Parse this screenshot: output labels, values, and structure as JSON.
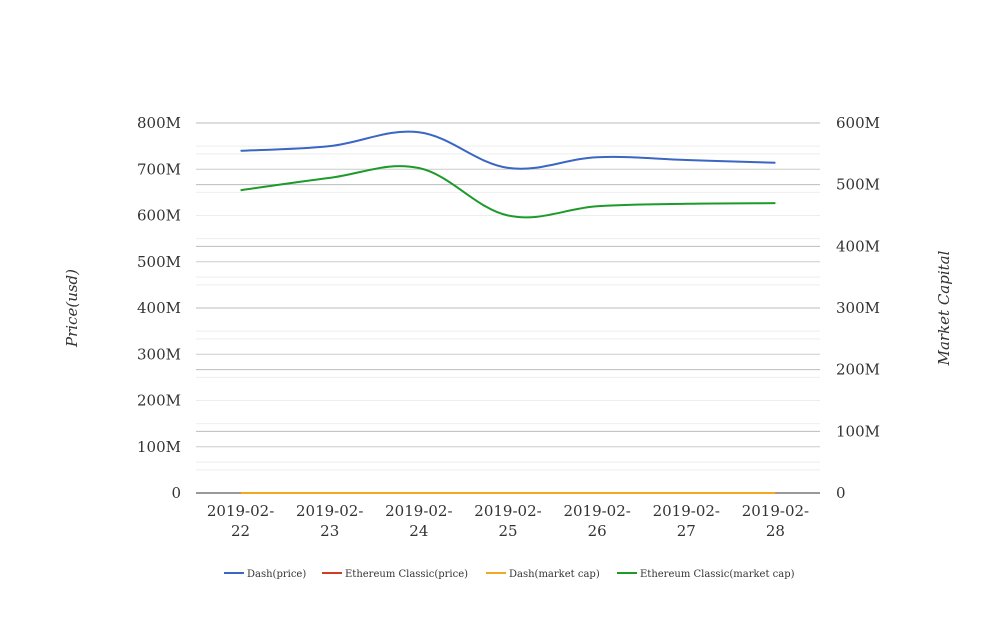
{
  "chart_data": {
    "type": "line",
    "title": "",
    "categories": [
      "2019-02-22",
      "2019-02-23",
      "2019-02-24",
      "2019-02-25",
      "2019-02-26",
      "2019-02-27",
      "2019-02-28"
    ],
    "x_tick_labels": [
      [
        "2019-02-",
        "22"
      ],
      [
        "2019-02-",
        "23"
      ],
      [
        "2019-02-",
        "24"
      ],
      [
        "2019-02-",
        "25"
      ],
      [
        "2019-02-",
        "26"
      ],
      [
        "2019-02-",
        "27"
      ],
      [
        "2019-02-",
        "28"
      ]
    ],
    "y_left": {
      "label": "Price(usd)",
      "ylim": [
        0,
        800000000
      ],
      "ticks": [
        0,
        100000000,
        200000000,
        300000000,
        400000000,
        500000000,
        600000000,
        700000000,
        800000000
      ],
      "tick_labels": [
        "0",
        "100M",
        "200M",
        "300M",
        "400M",
        "500M",
        "600M",
        "700M",
        "800M"
      ]
    },
    "y_right": {
      "label": "Market Capital",
      "ylim": [
        0,
        600000000
      ],
      "ticks": [
        0,
        100000000,
        200000000,
        300000000,
        400000000,
        500000000,
        600000000
      ],
      "tick_labels": [
        "0",
        "100M",
        "200M",
        "300M",
        "400M",
        "500M",
        "600M"
      ]
    },
    "grid": true,
    "legend_position": "bottom",
    "series": [
      {
        "name": "Dash(price)",
        "axis": "left",
        "color": "#3a66c4",
        "values": [
          740000000,
          750000000,
          780000000,
          703000000,
          726000000,
          720000000,
          714000000
        ]
      },
      {
        "name": "Ethereum Classic(price)",
        "axis": "left",
        "color": "#d23c22",
        "values": [
          4,
          4,
          4,
          4,
          4,
          4,
          4
        ]
      },
      {
        "name": "Dash(market cap)",
        "axis": "right",
        "color": "#f5a623",
        "values": [
          80,
          80,
          85,
          76,
          78,
          78,
          77
        ]
      },
      {
        "name": "Ethereum Classic(market cap)",
        "axis": "right",
        "color": "#1e9a2a",
        "values": [
          491000000,
          511000000,
          527000000,
          450000000,
          465000000,
          469000000,
          470000000
        ]
      }
    ]
  }
}
